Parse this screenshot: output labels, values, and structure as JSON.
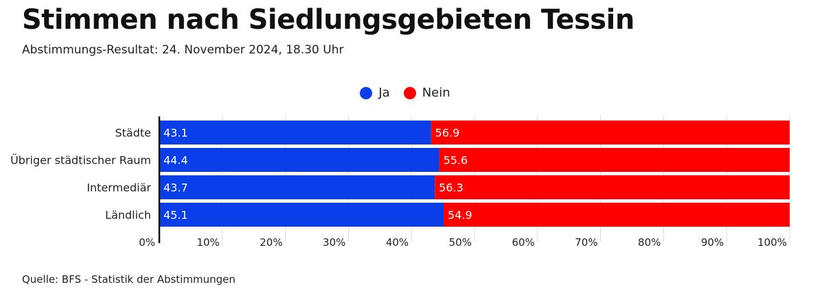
{
  "header": {
    "title": "Stimmen nach Siedlungsgebieten Tessin",
    "subtitle": "Abstimmungs-Resultat: 24. November 2024, 18.30 Uhr"
  },
  "footer": {
    "source": "Quelle: BFS - Statistik der Abstimmungen"
  },
  "colors": {
    "ja": "#0a3ee8",
    "nein": "#ff0000"
  },
  "chart_data": {
    "type": "bar",
    "orientation": "horizontal",
    "stacked": true,
    "title": "Stimmen nach Siedlungsgebieten Tessin",
    "subtitle": "Abstimmungs-Resultat: 24. November 2024, 18.30 Uhr",
    "categories": [
      "Städte",
      "Übriger städtischer Raum",
      "Intermediär",
      "Ländlich"
    ],
    "series": [
      {
        "name": "Ja",
        "values": [
          43.1,
          44.4,
          43.7,
          45.1
        ]
      },
      {
        "name": "Nein",
        "values": [
          56.9,
          55.6,
          56.3,
          54.9
        ]
      }
    ],
    "xlim": [
      0,
      100
    ],
    "xticks": [
      "0%",
      "10%",
      "20%",
      "30%",
      "40%",
      "50%",
      "60%",
      "70%",
      "80%",
      "90%",
      "100%"
    ],
    "grid": true,
    "legend_position": "top-center",
    "data_labels": true
  }
}
